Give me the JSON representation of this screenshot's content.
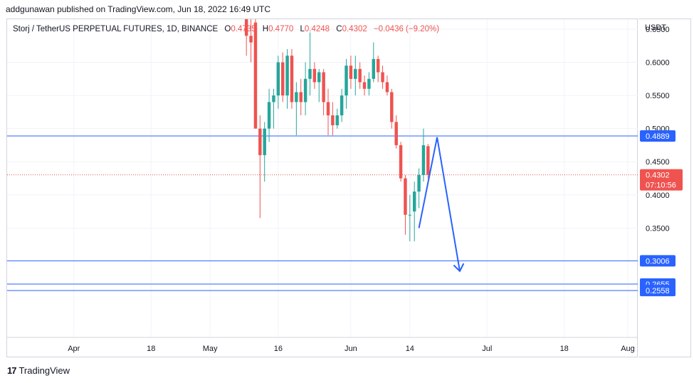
{
  "header": {
    "publish_line": "addgunawan published on TradingView.com, Jun 18, 2022 16:49 UTC"
  },
  "legend": {
    "symbol": "Storj / TetherUS PERPETUAL FUTURES, 1D, BINANCE",
    "open_label": "O",
    "open": "0.4735",
    "high_label": "H",
    "high": "0.4770",
    "low_label": "L",
    "low": "0.4248",
    "close_label": "C",
    "close": "0.4302",
    "change": "−0.0436 (−9.20%)"
  },
  "axis": {
    "currency": "USDT"
  },
  "footer": {
    "brand": "TradingView",
    "logo_mark": "17"
  },
  "colors": {
    "up": "#26a69a",
    "down": "#ef5350",
    "hline": "#2962ff",
    "arrow": "#2962ff",
    "price_line": "#ef5350"
  },
  "chart_data": {
    "type": "candlestick",
    "title": "Storj / TetherUS PERPETUAL FUTURES, 1D, BINANCE",
    "ylabel": "USDT",
    "ylim": [
      0.185,
      0.665
    ],
    "y_ticks": [
      {
        "value": 0.35,
        "label": "0.3500"
      },
      {
        "value": 0.4,
        "label": "0.4000"
      },
      {
        "value": 0.45,
        "label": "0.4500"
      },
      {
        "value": 0.5,
        "label": "0.5000"
      },
      {
        "value": 0.55,
        "label": "0.5500"
      },
      {
        "value": 0.6,
        "label": "0.6000"
      },
      {
        "value": 0.65,
        "label": "0.6500"
      }
    ],
    "x_range": [
      "2022-03-22",
      "2022-08-01"
    ],
    "x_ticks": [
      {
        "date": "2022-04-01",
        "label": "Apr"
      },
      {
        "date": "2022-04-18",
        "label": "18"
      },
      {
        "date": "2022-05-01",
        "label": "May"
      },
      {
        "date": "2022-05-16",
        "label": "16"
      },
      {
        "date": "2022-06-01",
        "label": "Jun"
      },
      {
        "date": "2022-06-14",
        "label": "14"
      },
      {
        "date": "2022-07-01",
        "label": "Jul"
      },
      {
        "date": "2022-07-18",
        "label": "18"
      },
      {
        "date": "2022-08-01",
        "label": "Aug"
      }
    ],
    "candles": [
      {
        "date": "2022-05-09",
        "open": 0.665,
        "high": 0.665,
        "low": 0.61,
        "close": 0.64
      },
      {
        "date": "2022-05-10",
        "open": 0.64,
        "high": 0.665,
        "low": 0.6,
        "close": 0.63
      },
      {
        "date": "2022-05-11",
        "open": 0.66,
        "high": 0.665,
        "low": 0.5,
        "close": 0.5
      },
      {
        "date": "2022-05-12",
        "open": 0.5,
        "high": 0.52,
        "low": 0.365,
        "close": 0.46
      },
      {
        "date": "2022-05-13",
        "open": 0.46,
        "high": 0.51,
        "low": 0.42,
        "close": 0.5
      },
      {
        "date": "2022-05-14",
        "open": 0.5,
        "high": 0.56,
        "low": 0.48,
        "close": 0.54
      },
      {
        "date": "2022-05-15",
        "open": 0.54,
        "high": 0.56,
        "low": 0.5,
        "close": 0.55
      },
      {
        "date": "2022-05-16",
        "open": 0.55,
        "high": 0.61,
        "low": 0.53,
        "close": 0.6
      },
      {
        "date": "2022-05-17",
        "open": 0.6,
        "high": 0.615,
        "low": 0.54,
        "close": 0.55
      },
      {
        "date": "2022-05-18",
        "open": 0.55,
        "high": 0.62,
        "low": 0.53,
        "close": 0.61
      },
      {
        "date": "2022-05-19",
        "open": 0.61,
        "high": 0.62,
        "low": 0.53,
        "close": 0.54
      },
      {
        "date": "2022-05-20",
        "open": 0.54,
        "high": 0.57,
        "low": 0.49,
        "close": 0.555
      },
      {
        "date": "2022-05-21",
        "open": 0.555,
        "high": 0.575,
        "low": 0.52,
        "close": 0.54
      },
      {
        "date": "2022-05-22",
        "open": 0.54,
        "high": 0.6,
        "low": 0.52,
        "close": 0.575
      },
      {
        "date": "2022-05-23",
        "open": 0.575,
        "high": 0.645,
        "low": 0.55,
        "close": 0.59
      },
      {
        "date": "2022-05-24",
        "open": 0.59,
        "high": 0.6,
        "low": 0.56,
        "close": 0.57
      },
      {
        "date": "2022-05-25",
        "open": 0.57,
        "high": 0.59,
        "low": 0.54,
        "close": 0.585
      },
      {
        "date": "2022-05-26",
        "open": 0.585,
        "high": 0.59,
        "low": 0.52,
        "close": 0.54
      },
      {
        "date": "2022-05-27",
        "open": 0.54,
        "high": 0.56,
        "low": 0.49,
        "close": 0.52
      },
      {
        "date": "2022-05-28",
        "open": 0.52,
        "high": 0.54,
        "low": 0.49,
        "close": 0.505
      },
      {
        "date": "2022-05-29",
        "open": 0.505,
        "high": 0.53,
        "low": 0.5,
        "close": 0.52
      },
      {
        "date": "2022-05-30",
        "open": 0.52,
        "high": 0.56,
        "low": 0.51,
        "close": 0.55
      },
      {
        "date": "2022-05-31",
        "open": 0.55,
        "high": 0.605,
        "low": 0.53,
        "close": 0.595
      },
      {
        "date": "2022-06-01",
        "open": 0.595,
        "high": 0.61,
        "low": 0.56,
        "close": 0.575
      },
      {
        "date": "2022-06-02",
        "open": 0.575,
        "high": 0.61,
        "low": 0.55,
        "close": 0.59
      },
      {
        "date": "2022-06-03",
        "open": 0.59,
        "high": 0.6,
        "low": 0.56,
        "close": 0.57
      },
      {
        "date": "2022-06-04",
        "open": 0.57,
        "high": 0.58,
        "low": 0.55,
        "close": 0.56
      },
      {
        "date": "2022-06-05",
        "open": 0.56,
        "high": 0.585,
        "low": 0.55,
        "close": 0.575
      },
      {
        "date": "2022-06-06",
        "open": 0.575,
        "high": 0.63,
        "low": 0.57,
        "close": 0.605
      },
      {
        "date": "2022-06-07",
        "open": 0.605,
        "high": 0.61,
        "low": 0.57,
        "close": 0.585
      },
      {
        "date": "2022-06-08",
        "open": 0.585,
        "high": 0.595,
        "low": 0.56,
        "close": 0.57
      },
      {
        "date": "2022-06-09",
        "open": 0.57,
        "high": 0.58,
        "low": 0.55,
        "close": 0.555
      },
      {
        "date": "2022-06-10",
        "open": 0.555,
        "high": 0.56,
        "low": 0.5,
        "close": 0.51
      },
      {
        "date": "2022-06-11",
        "open": 0.51,
        "high": 0.52,
        "low": 0.47,
        "close": 0.475
      },
      {
        "date": "2022-06-12",
        "open": 0.475,
        "high": 0.48,
        "low": 0.42,
        "close": 0.425
      },
      {
        "date": "2022-06-13",
        "open": 0.425,
        "high": 0.43,
        "low": 0.34,
        "close": 0.37
      },
      {
        "date": "2022-06-14",
        "open": 0.37,
        "high": 0.4,
        "low": 0.33,
        "close": 0.37
      },
      {
        "date": "2022-06-15",
        "open": 0.375,
        "high": 0.42,
        "low": 0.33,
        "close": 0.405
      },
      {
        "date": "2022-06-16",
        "open": 0.405,
        "high": 0.44,
        "low": 0.38,
        "close": 0.43
      },
      {
        "date": "2022-06-17",
        "open": 0.43,
        "high": 0.5,
        "low": 0.42,
        "close": 0.475
      },
      {
        "date": "2022-06-18",
        "open": 0.4735,
        "high": 0.477,
        "low": 0.4248,
        "close": 0.4302
      }
    ],
    "horizontal_lines": [
      {
        "value": 0.4889,
        "label": "0.4889"
      },
      {
        "value": 0.3006,
        "label": "0.3006"
      },
      {
        "value": 0.2655,
        "label": "0.2655"
      },
      {
        "value": 0.2558,
        "label": "0.2558"
      }
    ],
    "current_price": {
      "value": 0.4302,
      "label": "0.4302",
      "countdown": "07:10:56"
    },
    "projection_path": [
      {
        "date": "2022-06-16",
        "value": 0.35
      },
      {
        "date": "2022-06-20",
        "value": 0.487
      },
      {
        "date": "2022-06-25",
        "value": 0.285
      }
    ]
  }
}
